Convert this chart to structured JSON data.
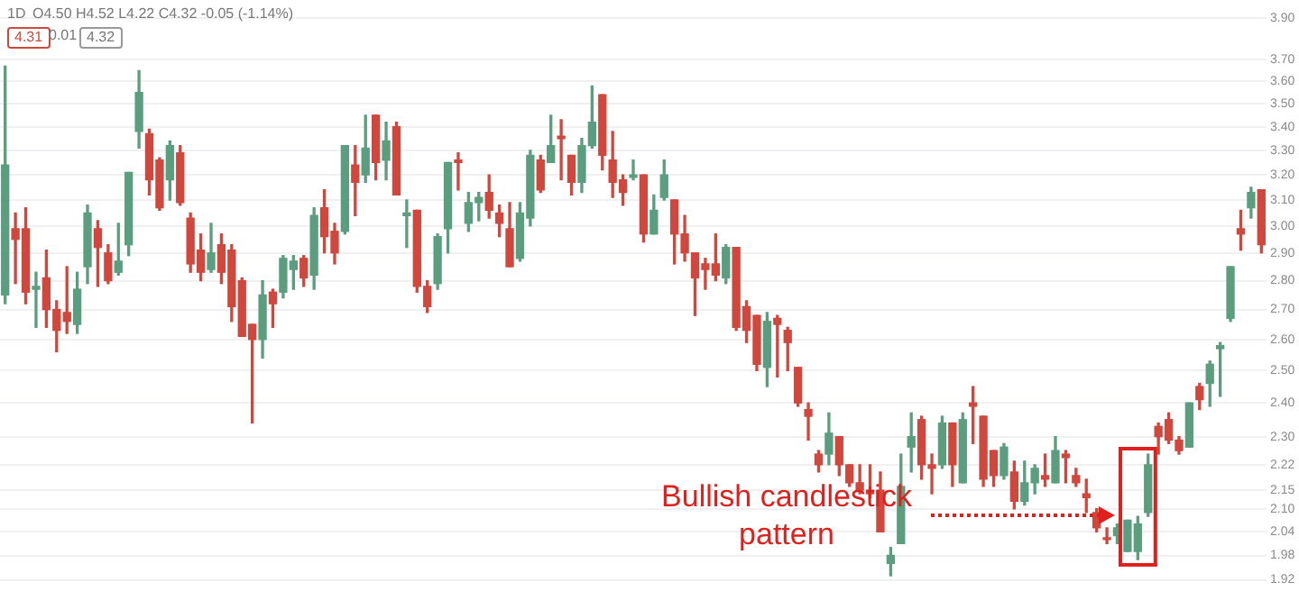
{
  "chart_data": {
    "type": "candlestick",
    "categories": [
      null,
      null,
      null,
      null,
      null,
      null,
      null,
      null,
      null,
      null,
      null,
      null,
      null,
      null,
      null,
      null,
      null,
      null,
      null,
      null,
      null,
      null,
      null,
      null,
      null,
      null,
      null,
      null,
      null,
      null,
      null,
      null,
      null,
      null,
      null,
      null,
      null,
      null,
      null,
      null,
      null,
      null,
      null,
      null,
      null,
      null,
      null,
      null,
      null,
      null,
      null,
      null,
      null,
      null,
      null,
      null,
      null,
      null,
      null,
      null,
      null,
      null,
      null,
      null,
      null,
      null,
      null,
      null,
      null,
      null,
      null,
      null,
      null,
      null,
      null,
      null,
      null,
      null,
      null,
      null,
      null,
      null,
      null,
      null,
      null,
      null,
      null,
      null,
      null,
      null,
      null,
      null,
      null,
      null,
      null,
      null,
      null,
      null,
      null,
      null,
      null,
      null,
      null,
      null,
      null,
      null,
      null,
      null,
      null,
      null,
      null,
      null,
      null,
      null,
      null,
      null,
      null,
      null,
      null,
      null,
      null,
      null,
      null
    ],
    "ohlc": [
      [
        2.75,
        3.67,
        2.72,
        3.24
      ],
      [
        2.99,
        3.05,
        2.79,
        2.95
      ],
      [
        2.99,
        3.07,
        2.72,
        2.76
      ],
      [
        2.77,
        2.83,
        2.64,
        2.78
      ],
      [
        2.81,
        2.91,
        2.64,
        2.7
      ],
      [
        2.7,
        2.73,
        2.56,
        2.63
      ],
      [
        2.69,
        2.85,
        2.62,
        2.66
      ],
      [
        2.65,
        2.83,
        2.62,
        2.77
      ],
      [
        2.85,
        3.08,
        2.79,
        3.05
      ],
      [
        2.99,
        3.02,
        2.78,
        2.92
      ],
      [
        2.9,
        2.93,
        2.79,
        2.8
      ],
      [
        2.83,
        3.01,
        2.82,
        2.87
      ],
      [
        2.93,
        3.21,
        2.89,
        3.21
      ],
      [
        3.38,
        3.65,
        3.31,
        3.55
      ],
      [
        3.37,
        3.39,
        3.12,
        3.18
      ],
      [
        3.26,
        3.27,
        3.06,
        3.07
      ],
      [
        3.18,
        3.34,
        3.1,
        3.32
      ],
      [
        3.29,
        3.32,
        3.08,
        3.09
      ],
      [
        3.03,
        3.05,
        2.83,
        2.86
      ],
      [
        2.91,
        2.97,
        2.8,
        2.83
      ],
      [
        2.84,
        3.01,
        2.83,
        2.9
      ],
      [
        2.93,
        2.97,
        2.79,
        2.83
      ],
      [
        2.91,
        2.93,
        2.66,
        2.71
      ],
      [
        2.8,
        2.81,
        2.61,
        2.61
      ],
      [
        2.65,
        2.65,
        2.34,
        2.6
      ],
      [
        2.6,
        2.8,
        2.54,
        2.75
      ],
      [
        2.76,
        2.77,
        2.64,
        2.72
      ],
      [
        2.76,
        2.89,
        2.74,
        2.88
      ],
      [
        2.84,
        2.89,
        2.77,
        2.87
      ],
      [
        2.88,
        2.89,
        2.78,
        2.81
      ],
      [
        2.82,
        3.07,
        2.77,
        3.04
      ],
      [
        3.07,
        3.14,
        2.9,
        2.96
      ],
      [
        2.98,
        3.01,
        2.86,
        2.9
      ],
      [
        2.98,
        3.32,
        2.97,
        3.32
      ],
      [
        3.24,
        3.32,
        3.04,
        3.17
      ],
      [
        3.2,
        3.45,
        3.17,
        3.31
      ],
      [
        3.45,
        3.45,
        3.18,
        3.25
      ],
      [
        3.26,
        3.42,
        3.18,
        3.34
      ],
      [
        3.4,
        3.42,
        3.12,
        3.12
      ],
      [
        3.04,
        3.1,
        2.92,
        3.05
      ],
      [
        3.06,
        3.06,
        2.76,
        2.78
      ],
      [
        2.78,
        2.8,
        2.69,
        2.71
      ],
      [
        2.79,
        2.97,
        2.77,
        2.96
      ],
      [
        2.99,
        3.25,
        2.9,
        3.25
      ],
      [
        3.26,
        3.29,
        3.14,
        3.25
      ],
      [
        3.01,
        3.13,
        2.98,
        3.09
      ],
      [
        3.09,
        3.13,
        3.02,
        3.11
      ],
      [
        3.13,
        3.2,
        3.03,
        3.06
      ],
      [
        3.05,
        3.08,
        2.96,
        3.01
      ],
      [
        2.99,
        3.09,
        2.85,
        2.85
      ],
      [
        2.88,
        3.09,
        2.87,
        3.05
      ],
      [
        3.03,
        3.3,
        3.0,
        3.28
      ],
      [
        3.26,
        3.28,
        3.13,
        3.14
      ],
      [
        3.25,
        3.45,
        3.25,
        3.32
      ],
      [
        3.36,
        3.43,
        3.18,
        3.35
      ],
      [
        3.28,
        3.28,
        3.12,
        3.17
      ],
      [
        3.17,
        3.35,
        3.13,
        3.32
      ],
      [
        3.32,
        3.58,
        3.31,
        3.42
      ],
      [
        3.54,
        3.54,
        3.22,
        3.28
      ],
      [
        3.26,
        3.38,
        3.11,
        3.17
      ],
      [
        3.18,
        3.2,
        3.08,
        3.13
      ],
      [
        3.19,
        3.26,
        3.18,
        3.2
      ],
      [
        3.2,
        3.2,
        2.94,
        2.97
      ],
      [
        2.97,
        3.12,
        2.97,
        3.06
      ],
      [
        3.11,
        3.26,
        3.1,
        3.2
      ],
      [
        3.1,
        3.1,
        2.86,
        2.97
      ],
      [
        2.97,
        3.04,
        2.87,
        2.9
      ],
      [
        2.9,
        2.9,
        2.68,
        2.81
      ],
      [
        2.86,
        2.88,
        2.77,
        2.84
      ],
      [
        2.86,
        2.97,
        2.8,
        2.82
      ],
      [
        2.81,
        2.93,
        2.79,
        2.92
      ],
      [
        2.92,
        2.92,
        2.63,
        2.64
      ],
      [
        2.71,
        2.73,
        2.59,
        2.63
      ],
      [
        2.68,
        2.68,
        2.5,
        2.52
      ],
      [
        2.51,
        2.69,
        2.45,
        2.66
      ],
      [
        2.67,
        2.68,
        2.48,
        2.65
      ],
      [
        2.63,
        2.64,
        2.5,
        2.59
      ],
      [
        2.51,
        2.51,
        2.39,
        2.4
      ],
      [
        2.38,
        2.4,
        2.29,
        2.36
      ],
      [
        2.25,
        2.26,
        2.2,
        2.22
      ],
      [
        2.25,
        2.37,
        2.22,
        2.31
      ],
      [
        2.3,
        2.3,
        2.19,
        2.22
      ],
      [
        2.22,
        2.22,
        2.16,
        2.17
      ],
      [
        2.17,
        2.22,
        2.14,
        2.15
      ],
      [
        2.15,
        2.22,
        2.13,
        2.14
      ],
      [
        2.15,
        2.2,
        2.04,
        2.04
      ],
      [
        1.96,
        2.0,
        1.93,
        1.98
      ],
      [
        2.01,
        2.25,
        2.01,
        2.16
      ],
      [
        2.27,
        2.37,
        2.2,
        2.3
      ],
      [
        2.35,
        2.36,
        2.18,
        2.22
      ],
      [
        2.22,
        2.25,
        2.14,
        2.21
      ],
      [
        2.22,
        2.36,
        2.21,
        2.34
      ],
      [
        2.34,
        2.34,
        2.16,
        2.22
      ],
      [
        2.17,
        2.37,
        2.17,
        2.35
      ],
      [
        2.4,
        2.45,
        2.28,
        2.39
      ],
      [
        2.36,
        2.36,
        2.16,
        2.18
      ],
      [
        2.26,
        2.26,
        2.16,
        2.19
      ],
      [
        2.19,
        2.28,
        2.18,
        2.27
      ],
      [
        2.2,
        2.23,
        2.1,
        2.12
      ],
      [
        2.12,
        2.23,
        2.11,
        2.17
      ],
      [
        2.17,
        2.22,
        2.14,
        2.21
      ],
      [
        2.19,
        2.25,
        2.16,
        2.18
      ],
      [
        2.17,
        2.3,
        2.17,
        2.26
      ],
      [
        2.25,
        2.26,
        2.17,
        2.24
      ],
      [
        2.19,
        2.21,
        2.16,
        2.17
      ],
      [
        2.14,
        2.18,
        2.09,
        2.13
      ],
      [
        2.09,
        2.1,
        2.04,
        2.05
      ],
      [
        2.02,
        2.05,
        2.01,
        2.02
      ],
      [
        2.03,
        2.06,
        2.01,
        2.05
      ],
      [
        1.99,
        2.07,
        1.99,
        2.07
      ],
      [
        1.99,
        2.08,
        1.97,
        2.06
      ],
      [
        2.09,
        2.25,
        2.08,
        2.22
      ],
      [
        2.33,
        2.34,
        2.25,
        2.3
      ],
      [
        2.35,
        2.37,
        2.28,
        2.29
      ],
      [
        2.29,
        2.3,
        2.25,
        2.26
      ],
      [
        2.27,
        2.4,
        2.27,
        2.4
      ],
      [
        2.45,
        2.46,
        2.38,
        2.41
      ],
      [
        2.46,
        2.53,
        2.39,
        2.52
      ],
      [
        2.57,
        2.59,
        2.42,
        2.58
      ],
      [
        2.67,
        2.85,
        2.66,
        2.85
      ],
      [
        2.99,
        3.06,
        2.91,
        2.97
      ],
      [
        3.07,
        3.15,
        3.03,
        3.13
      ],
      [
        3.14,
        3.14,
        2.9,
        2.93
      ]
    ],
    "colors": [
      "#5b9e7f",
      "#d0473d",
      "#d0473d",
      "#5b9e7f",
      "#d0473d",
      "#d0473d",
      "#d0473d",
      "#5b9e7f",
      "#5b9e7f",
      "#d0473d",
      "#d0473d",
      "#5b9e7f",
      "#5b9e7f",
      "#5b9e7f",
      "#d0473d",
      "#d0473d",
      "#5b9e7f",
      "#d0473d",
      "#d0473d",
      "#d0473d",
      "#5b9e7f",
      "#d0473d",
      "#d0473d",
      "#d0473d",
      "#d0473d",
      "#5b9e7f",
      "#d0473d",
      "#5b9e7f",
      "#5b9e7f",
      "#d0473d",
      "#5b9e7f",
      "#d0473d",
      "#d0473d",
      "#5b9e7f",
      "#d0473d",
      "#5b9e7f",
      "#d0473d",
      "#5b9e7f",
      "#d0473d",
      "#5b9e7f",
      "#d0473d",
      "#d0473d",
      "#5b9e7f",
      "#5b9e7f",
      "#d0473d",
      "#5b9e7f",
      "#5b9e7f",
      "#d0473d",
      "#d0473d",
      "#d0473d",
      "#5b9e7f",
      "#5b9e7f",
      "#d0473d",
      "#5b9e7f",
      "#d0473d",
      "#d0473d",
      "#5b9e7f",
      "#5b9e7f",
      "#d0473d",
      "#d0473d",
      "#d0473d",
      "#5b9e7f",
      "#d0473d",
      "#5b9e7f",
      "#5b9e7f",
      "#d0473d",
      "#d0473d",
      "#d0473d",
      "#d0473d",
      "#d0473d",
      "#5b9e7f",
      "#d0473d",
      "#d0473d",
      "#d0473d",
      "#5b9e7f",
      "#d0473d",
      "#d0473d",
      "#d0473d",
      "#d0473d",
      "#d0473d",
      "#5b9e7f",
      "#d0473d",
      "#d0473d",
      "#d0473d",
      "#d0473d",
      "#d0473d",
      "#5b9e7f",
      "#5b9e7f",
      "#5b9e7f",
      "#d0473d",
      "#d0473d",
      "#5b9e7f",
      "#d0473d",
      "#5b9e7f",
      "#d0473d",
      "#d0473d",
      "#d0473d",
      "#5b9e7f",
      "#d0473d",
      "#5b9e7f",
      "#5b9e7f",
      "#d0473d",
      "#5b9e7f",
      "#d0473d",
      "#d0473d",
      "#d0473d",
      "#d0473d",
      "#d0473d",
      "#5b9e7f",
      "#5b9e7f",
      "#5b9e7f",
      "#5b9e7f",
      "#d0473d",
      "#d0473d",
      "#d0473d",
      "#5b9e7f",
      "#d0473d",
      "#5b9e7f",
      "#5b9e7f",
      "#5b9e7f",
      "#d0473d",
      "#5b9e7f",
      "#d0473d"
    ],
    "log": true,
    "ylim": [
      1.92,
      3.9
    ],
    "yticks": [
      {
        "value": 3.9,
        "label": "3.90"
      },
      {
        "value": 3.7,
        "label": "3.70"
      },
      {
        "value": 3.6,
        "label": "3.60"
      },
      {
        "value": 3.5,
        "label": "3.50"
      },
      {
        "value": 3.4,
        "label": "3.40"
      },
      {
        "value": 3.3,
        "label": "3.30"
      },
      {
        "value": 3.2,
        "label": "3.20"
      },
      {
        "value": 3.1,
        "label": "3.10"
      },
      {
        "value": 3.0,
        "label": "3.00"
      },
      {
        "value": 2.9,
        "label": "2.90"
      },
      {
        "value": 2.8,
        "label": "2.80"
      },
      {
        "value": 2.7,
        "label": "2.70"
      },
      {
        "value": 2.6,
        "label": "2.60"
      },
      {
        "value": 2.5,
        "label": "2.50"
      },
      {
        "value": 2.4,
        "label": "2.40"
      },
      {
        "value": 2.3,
        "label": "2.30"
      },
      2.22,
      2.15,
      {
        "value": 2.1,
        "label": "2.10"
      },
      2.04,
      1.98,
      1.92
    ],
    "tick_labels": "y",
    "grid": "y",
    "annotations": [
      "1D",
      "O4.50 H4.52 L4.22 C4.32 -0.05 (-1.14%)",
      "4.31",
      "0.01",
      "4.32",
      "Bullish candlestick pattern"
    ]
  }
}
